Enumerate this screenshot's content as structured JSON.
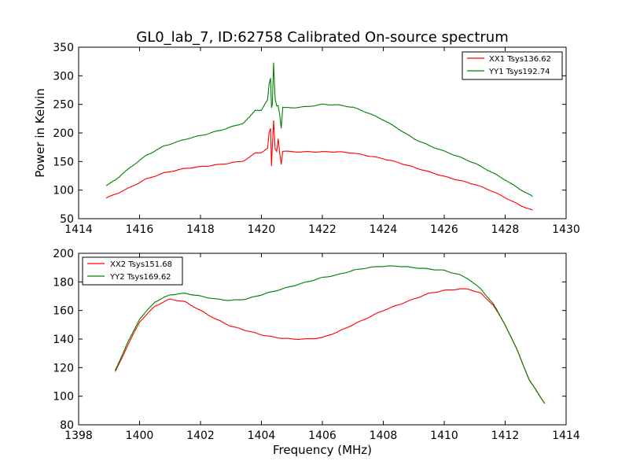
{
  "figure": {
    "title": "GL0_lab_7, ID:62758 Calibrated On-source spectrum",
    "ylabel": "Power in Kelvin",
    "xlabel": "Frequency (MHz)"
  },
  "chart_data": [
    {
      "type": "line",
      "xlim": [
        1414,
        1430
      ],
      "ylim": [
        50,
        350
      ],
      "xticks": [
        1414,
        1416,
        1418,
        1420,
        1422,
        1424,
        1426,
        1428,
        1430
      ],
      "yticks": [
        50,
        100,
        150,
        200,
        250,
        300,
        350
      ],
      "grid": false,
      "legend_position": "top-right",
      "series": [
        {
          "name": "XX1 Tsys136.62",
          "color": "#ff0000",
          "x": [
            1414.9,
            1415.3,
            1415.7,
            1416.2,
            1416.8,
            1417.5,
            1418.2,
            1418.8,
            1419.4,
            1419.6,
            1419.8,
            1420.0,
            1420.2,
            1420.25,
            1420.3,
            1420.33,
            1420.36,
            1420.4,
            1420.45,
            1420.5,
            1420.55,
            1420.6,
            1420.65,
            1420.7,
            1420.8,
            1421.0,
            1421.5,
            1422.0,
            1422.5,
            1423.0,
            1423.5,
            1424.0,
            1424.5,
            1425.0,
            1425.5,
            1426.0,
            1426.5,
            1427.0,
            1427.5,
            1428.0,
            1428.5,
            1428.9
          ],
          "y": [
            86,
            95,
            105,
            119,
            130,
            138,
            142,
            146,
            151,
            157,
            165,
            166,
            173,
            200,
            208,
            142,
            178,
            222,
            172,
            168,
            190,
            165,
            145,
            168,
            168,
            167,
            167,
            167,
            167,
            165,
            160,
            155,
            148,
            140,
            132,
            124,
            117,
            110,
            100,
            87,
            73,
            65
          ]
        },
        {
          "name": "YY1 Tsys192.74",
          "color": "#008000",
          "x": [
            1414.9,
            1415.3,
            1415.7,
            1416.2,
            1416.8,
            1417.5,
            1418.2,
            1418.8,
            1419.4,
            1419.6,
            1419.8,
            1420.0,
            1420.2,
            1420.25,
            1420.3,
            1420.33,
            1420.36,
            1420.4,
            1420.45,
            1420.5,
            1420.55,
            1420.6,
            1420.65,
            1420.7,
            1420.8,
            1421.0,
            1421.5,
            1422.0,
            1422.5,
            1423.0,
            1423.5,
            1424.0,
            1424.5,
            1425.0,
            1425.5,
            1426.0,
            1426.5,
            1427.0,
            1427.5,
            1428.0,
            1428.5,
            1428.9
          ],
          "y": [
            107,
            122,
            140,
            160,
            177,
            189,
            198,
            207,
            217,
            227,
            240,
            240,
            258,
            285,
            296,
            244,
            250,
            323,
            260,
            247,
            248,
            232,
            208,
            245,
            244,
            244,
            246,
            250,
            249,
            245,
            235,
            223,
            207,
            190,
            178,
            168,
            158,
            147,
            133,
            118,
            101,
            89
          ]
        }
      ]
    },
    {
      "type": "line",
      "xlim": [
        1398,
        1414
      ],
      "ylim": [
        80,
        200
      ],
      "xticks": [
        1398,
        1400,
        1402,
        1404,
        1406,
        1408,
        1410,
        1412,
        1414
      ],
      "yticks": [
        80,
        100,
        120,
        140,
        160,
        180,
        200
      ],
      "grid": false,
      "legend_position": "top-left",
      "series": [
        {
          "name": "XX2 Tsys151.68",
          "color": "#ff0000",
          "x": [
            1399.2,
            1399.6,
            1400.0,
            1400.5,
            1401.0,
            1401.5,
            1402.0,
            1402.5,
            1403.0,
            1403.5,
            1404.0,
            1404.5,
            1405.0,
            1405.5,
            1406.0,
            1406.5,
            1407.0,
            1407.5,
            1408.0,
            1408.5,
            1409.0,
            1409.5,
            1410.0,
            1410.5,
            1410.8,
            1411.2,
            1411.6,
            1412.0,
            1412.4,
            1412.8,
            1413.3
          ],
          "y": [
            117,
            135,
            152,
            163,
            168,
            166,
            160,
            154,
            149,
            146,
            143,
            141,
            140,
            140,
            141,
            145,
            150,
            155,
            160,
            164,
            168,
            172,
            174,
            175,
            175,
            172,
            164,
            150,
            132,
            111,
            95
          ]
        },
        {
          "name": "YY2 Tsys169.62",
          "color": "#008000",
          "x": [
            1399.2,
            1399.6,
            1400.0,
            1400.5,
            1401.0,
            1401.5,
            1402.0,
            1402.5,
            1403.0,
            1403.5,
            1404.0,
            1404.5,
            1405.0,
            1405.5,
            1406.0,
            1406.5,
            1407.0,
            1407.5,
            1408.0,
            1408.5,
            1409.0,
            1409.5,
            1410.0,
            1410.5,
            1410.8,
            1411.2,
            1411.6,
            1412.0,
            1412.4,
            1412.8,
            1413.3
          ],
          "y": [
            118,
            137,
            154,
            166,
            171,
            172,
            170,
            168,
            167,
            168,
            171,
            174,
            177,
            180,
            183,
            185,
            188,
            190,
            191,
            191,
            190,
            189,
            188,
            185,
            182,
            175,
            165,
            150,
            132,
            111,
            95
          ]
        }
      ]
    }
  ]
}
